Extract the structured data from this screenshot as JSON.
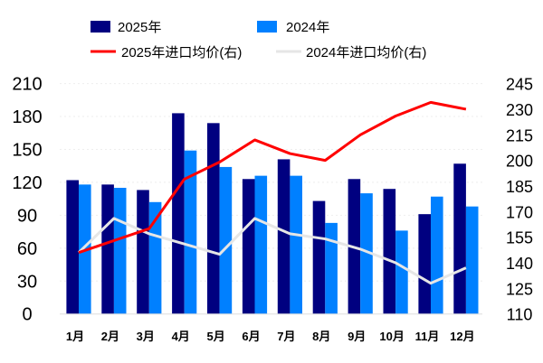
{
  "chart_data": {
    "type": "bar+line",
    "categories": [
      "1月",
      "2月",
      "3月",
      "4月",
      "5月",
      "6月",
      "7月",
      "8月",
      "9月",
      "10月",
      "11月",
      "12月"
    ],
    "series": [
      {
        "name": "2025年",
        "type": "bar",
        "axis": "left",
        "color": "#000080",
        "values": [
          122,
          118,
          113,
          183,
          174,
          123,
          141,
          103,
          123,
          114,
          91,
          137
        ]
      },
      {
        "name": "2024年",
        "type": "bar",
        "axis": "left",
        "color": "#0080FF",
        "values": [
          118,
          115,
          102,
          149,
          134,
          126,
          126,
          83,
          110,
          76,
          107,
          98
        ]
      },
      {
        "name": "2025年进口均价(右)",
        "type": "line",
        "axis": "right",
        "color": "#FF0000",
        "values": [
          146,
          153,
          160,
          189,
          199,
          212,
          204,
          200,
          215,
          226,
          234,
          230
        ]
      },
      {
        "name": "2024年进口均价(右)",
        "type": "line",
        "axis": "right",
        "color": "#E6E6E6",
        "values": [
          146,
          166,
          157,
          151,
          145,
          166,
          157,
          154,
          148,
          140,
          128,
          137
        ]
      }
    ],
    "left_axis": {
      "range": [
        0,
        210
      ],
      "ticks": [
        "0",
        "30",
        "60",
        "90",
        "120",
        "150",
        "180",
        "210"
      ]
    },
    "right_axis": {
      "range": [
        110,
        245
      ],
      "ticks": [
        "110",
        "125",
        "140",
        "155",
        "170",
        "185",
        "200",
        "215",
        "230",
        "245"
      ]
    },
    "legend_placement": "top",
    "grid": "faint dotted horizontal"
  }
}
